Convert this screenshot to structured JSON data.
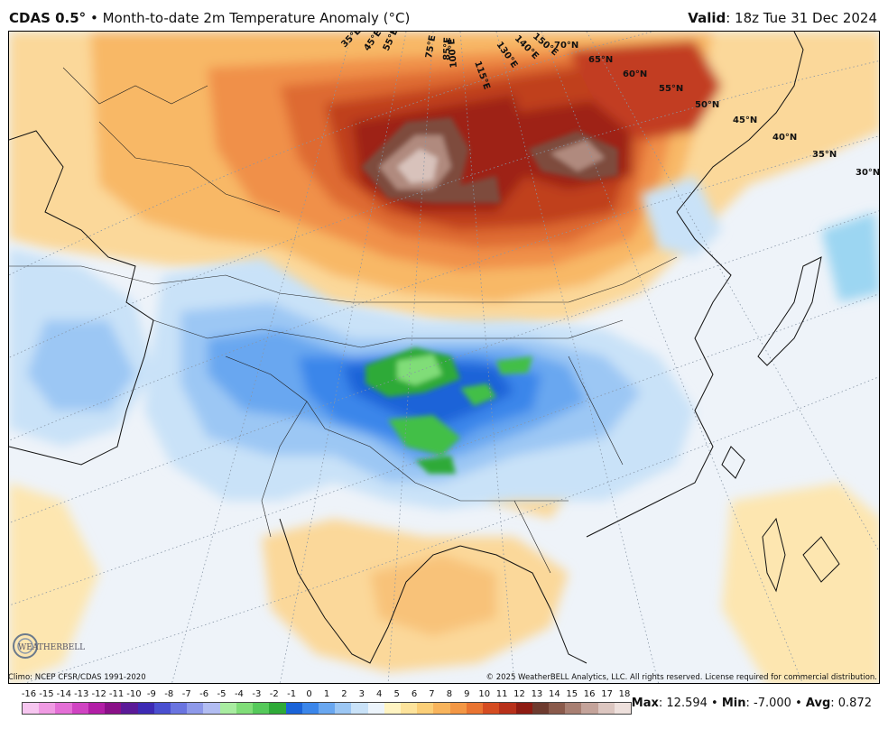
{
  "header": {
    "model": "CDAS 0.5",
    "degree_symbol": "°",
    "separator": "•",
    "product": "Month-to-date 2m Temperature Anomaly (°C)",
    "valid_label": "Valid",
    "valid_time": ": 18z Tue 31 Dec 2024"
  },
  "map": {
    "latitude_labels": [
      "70°N",
      "65°N",
      "60°N",
      "55°N",
      "50°N",
      "45°N",
      "40°N",
      "35°N",
      "30°N"
    ],
    "longitude_labels": [
      "35°E",
      "45°E",
      "55°E",
      "75°E",
      "85°E",
      "100°E",
      "115°E",
      "130°E",
      "140°E",
      "150°E"
    ],
    "logo_text": "WEATHERBELL"
  },
  "footer": {
    "climo": "Climo: NCEP CFSR/CDAS 1991-2020",
    "copyright": "© 2025 WeatherBELL Analytics, LLC. All rights reserved. License required for commercial distribution."
  },
  "scale": {
    "ticks": [
      "-16",
      "-15",
      "-14",
      "-13",
      "-12",
      "-11",
      "-10",
      "-9",
      "-8",
      "-7",
      "-6",
      "-5",
      "-4",
      "-3",
      "-2",
      "-1",
      "0",
      "1",
      "2",
      "3",
      "4",
      "5",
      "6",
      "7",
      "8",
      "9",
      "10",
      "11",
      "12",
      "13",
      "14",
      "15",
      "16",
      "17",
      "18"
    ],
    "colors": [
      "#f7c6f0",
      "#f09be3",
      "#e46fd6",
      "#d043c2",
      "#b21ea6",
      "#8a1088",
      "#5b1a98",
      "#3d2ab4",
      "#4a4fd0",
      "#6a74e0",
      "#8e99ea",
      "#b2bdf2",
      "#96e68f",
      "#6fd36a",
      "#43bf47",
      "#229c2c",
      "#1a63d8",
      "#3b86ea",
      "#69a7f0",
      "#9cc7f4",
      "#c9e2f8",
      "#ecf4fb",
      "#fff4c2",
      "#fde39b",
      "#fbcf78",
      "#f8b45c",
      "#f39744",
      "#e97431",
      "#d54c21",
      "#b8301a",
      "#8e1b12",
      "#6e3b2f",
      "#8a5a4b",
      "#a87f72",
      "#c4a39a",
      "#dcc6c0",
      "#eee0dc"
    ],
    "legend_colors": [
      "#f7c6f0",
      "#f09be3",
      "#e46fd6",
      "#d043c2",
      "#b21ea6",
      "#8a1088",
      "#5b1a98",
      "#3d2ab4",
      "#4a4fd0",
      "#6a74e0",
      "#8e99ea",
      "#b2bdf2",
      "#a8eca0",
      "#80dd78",
      "#55c95a",
      "#2eaa38",
      "#1a63d8",
      "#3b86ea",
      "#69a7f0",
      "#9cc7f4",
      "#c9e2f8",
      "#ecf4fb",
      "#fff4c2",
      "#fde39b",
      "#fbcf78",
      "#f8b45c",
      "#f39744",
      "#e97431",
      "#d54c21",
      "#b8301a",
      "#8e1b12",
      "#6e3b2f",
      "#8a5a4b",
      "#a87f72",
      "#c4a39a",
      "#dcc6c0",
      "#eee0dc"
    ]
  },
  "stats": {
    "max_label": "Max",
    "max_value": ": 12.594",
    "min_label": "Min",
    "min_value": ": -7.000",
    "avg_label": "Avg",
    "avg_value": ": 0.872",
    "sep": "•"
  }
}
